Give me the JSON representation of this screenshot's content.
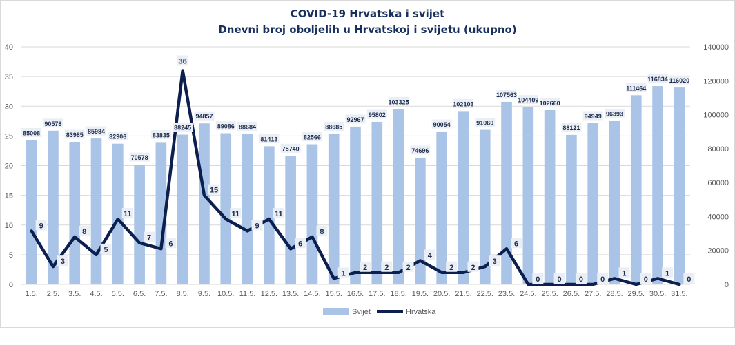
{
  "chart_data": {
    "type": "bar",
    "title": "COVID-19 Hrvatska i svijet",
    "subtitle": "Dnevni broj oboljelih u Hrvatskoj i svijetu (ukupno)",
    "categories": [
      "1.5.",
      "2.5.",
      "3.5.",
      "4.5.",
      "5.5.",
      "6.5.",
      "7.5.",
      "8.5.",
      "9.5.",
      "10.5.",
      "11.5.",
      "12.5.",
      "13.5.",
      "14.5.",
      "15.5.",
      "16.5.",
      "17.5.",
      "18.5.",
      "19.5.",
      "20.5.",
      "21.5.",
      "22.5.",
      "23.5.",
      "24.5.",
      "25.5.",
      "26.5.",
      "27.5.",
      "28.5.",
      "29.5.",
      "30.5.",
      "31.5."
    ],
    "series": [
      {
        "name": "Svijet",
        "type": "bar",
        "axis": "right",
        "color": "#a9c4e6",
        "values": [
          85008,
          90578,
          83985,
          85984,
          82906,
          70578,
          83835,
          88245,
          94857,
          89086,
          88684,
          81413,
          75740,
          82566,
          88685,
          92967,
          95802,
          103325,
          74696,
          90054,
          102103,
          91060,
          107563,
          104409,
          102660,
          88121,
          94949,
          96393,
          111464,
          116834,
          116020
        ]
      },
      {
        "name": "Hrvatska",
        "type": "line",
        "axis": "left",
        "color": "#0c1f4f",
        "values": [
          9,
          3,
          8,
          5,
          11,
          7,
          6,
          36,
          15,
          11,
          9,
          11,
          6,
          8,
          1,
          2,
          2,
          2,
          4,
          2,
          2,
          3,
          6,
          0,
          0,
          0,
          0,
          1,
          0,
          1,
          0
        ]
      }
    ],
    "ylim_left": [
      0,
      40
    ],
    "yticks_left": [
      0,
      5,
      10,
      15,
      20,
      25,
      30,
      35,
      40
    ],
    "ylim_right": [
      0,
      140000
    ],
    "yticks_right": [
      0,
      20000,
      40000,
      60000,
      80000,
      100000,
      120000,
      140000
    ],
    "grid": true,
    "legend_position": "bottom"
  }
}
